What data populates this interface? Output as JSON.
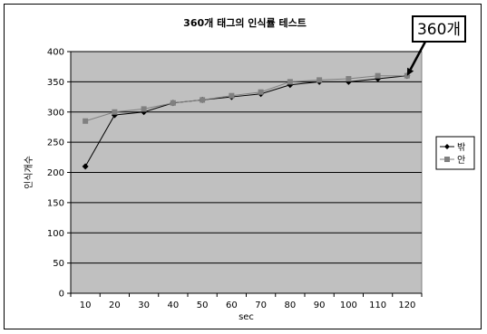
{
  "chart_data": {
    "type": "line",
    "title": "360개 태그의 인식률 테스트",
    "xlabel": "sec",
    "ylabel": "인식개수",
    "x": [
      10,
      20,
      30,
      40,
      50,
      60,
      70,
      80,
      90,
      100,
      110,
      120
    ],
    "ylim": [
      0,
      400
    ],
    "yticks": [
      0,
      50,
      100,
      150,
      200,
      250,
      300,
      350,
      400
    ],
    "grid": true,
    "legend_position": "right",
    "series": [
      {
        "name": "밖",
        "values": [
          210,
          295,
          300,
          315,
          320,
          325,
          330,
          345,
          350,
          350,
          355,
          360
        ],
        "color": "#000000",
        "marker": "diamond"
      },
      {
        "name": "안",
        "values": [
          285,
          300,
          305,
          315,
          320,
          327,
          333,
          350,
          353,
          355,
          360,
          360
        ],
        "color": "#808080",
        "marker": "square"
      }
    ],
    "annotation": {
      "text": "360개",
      "x": 120,
      "y": 360
    },
    "plot_background": "#c0c0c0"
  }
}
